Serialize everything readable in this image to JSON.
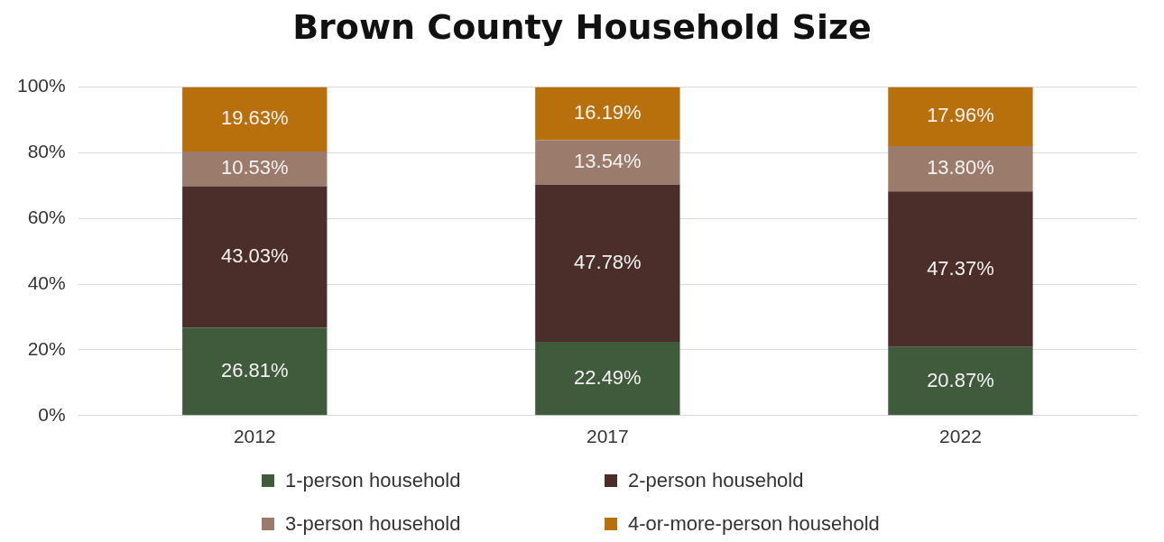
{
  "chart_data": {
    "type": "bar",
    "title": "Brown County Household Size",
    "categories": [
      "2012",
      "2017",
      "2022"
    ],
    "stacked": true,
    "series": [
      {
        "name": "1-person household",
        "color": "#3f5b3c",
        "values": [
          26.81,
          22.49,
          20.87
        ],
        "value_labels": [
          "26.81%",
          "22.49%",
          "20.87%"
        ]
      },
      {
        "name": "2-person household",
        "color": "#4b2d2a",
        "values": [
          43.03,
          47.78,
          47.37
        ],
        "value_labels": [
          "43.03%",
          "47.78%",
          "47.37%"
        ]
      },
      {
        "name": "3-person household",
        "color": "#9b7b6b",
        "values": [
          10.53,
          13.54,
          13.8
        ],
        "value_labels": [
          "10.53%",
          "13.54%",
          "13.80%"
        ]
      },
      {
        "name": "4-or-more-person household",
        "color": "#b8700c",
        "values": [
          19.63,
          16.19,
          17.96
        ],
        "value_labels": [
          "19.63%",
          "16.19%",
          "17.96%"
        ]
      }
    ],
    "ylim": [
      0,
      100
    ],
    "yticks": [
      {
        "value": 0,
        "label": "0%"
      },
      {
        "value": 20,
        "label": "20%"
      },
      {
        "value": 40,
        "label": "40%"
      },
      {
        "value": 60,
        "label": "60%"
      },
      {
        "value": 80,
        "label": "80%"
      },
      {
        "value": 100,
        "label": "100%"
      }
    ],
    "grid": "y",
    "legend": "bottom"
  }
}
